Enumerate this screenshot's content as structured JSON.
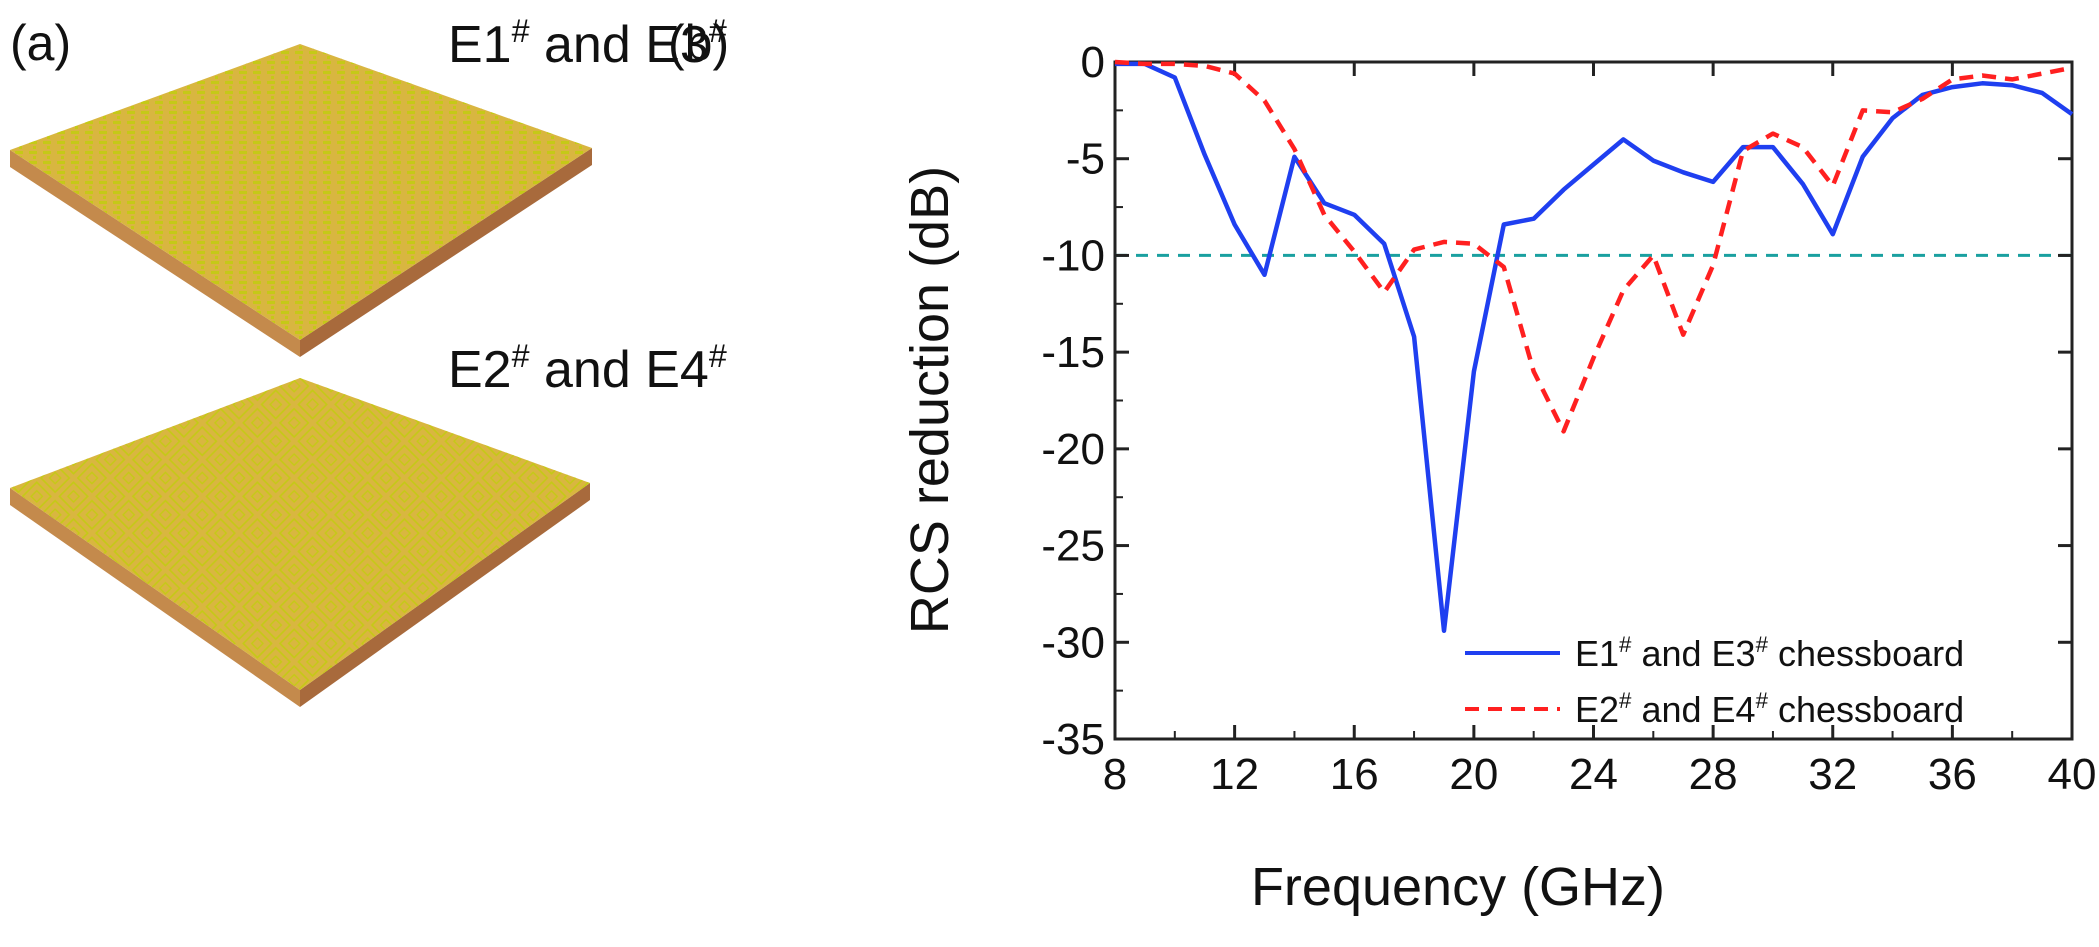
{
  "panel_a": {
    "label": "(a)",
    "top_title": {
      "main1": "E1",
      "sup1": "#",
      "mid": " and E3",
      "sup2": "#"
    },
    "bottom_title": {
      "main1": "E2",
      "sup1": "#",
      "mid": " and E4",
      "sup2": "#"
    },
    "colors": {
      "top": "#d9b640",
      "left": "#c48a4c",
      "right": "#a86a3c",
      "pattern": "#c2cc10"
    }
  },
  "panel_b": {
    "label": "(b)"
  },
  "chart_data": {
    "type": "line",
    "xlabel": "Frequency (GHz)",
    "ylabel": "RCS reduction (dB)",
    "xlim": [
      8,
      40
    ],
    "ylim": [
      -35,
      0
    ],
    "xticks": [
      8,
      12,
      16,
      20,
      24,
      28,
      32,
      36,
      40
    ],
    "yticks": [
      0,
      -5,
      -10,
      -15,
      -20,
      -25,
      -30,
      -35
    ],
    "reference_line": {
      "y": -10,
      "style": "dashed",
      "color": "#1aa0a0"
    },
    "legend_position": "bottom-right",
    "series": [
      {
        "name": "E1# and E3# chessboard",
        "legend": {
          "main1": "E1",
          "sup1": "#",
          "mid": " and E3",
          "sup2": "#",
          "tail": " chessboard"
        },
        "color": "#1f3ff0",
        "style": "solid",
        "x": [
          8,
          9,
          10,
          11,
          12,
          13,
          14,
          15,
          16,
          17,
          18,
          19,
          20,
          21,
          22,
          23,
          24,
          25,
          26,
          27,
          28,
          29,
          30,
          31,
          32,
          33,
          34,
          35,
          36,
          37,
          38,
          39,
          40
        ],
        "y": [
          -0.1,
          -0.1,
          -0.8,
          -4.8,
          -8.4,
          -11.0,
          -4.9,
          -7.3,
          -7.9,
          -9.4,
          -14.2,
          -29.4,
          -16.0,
          -8.4,
          -8.1,
          -6.6,
          -5.3,
          -4.0,
          -5.1,
          -5.7,
          -6.2,
          -4.4,
          -4.4,
          -6.3,
          -8.9,
          -4.9,
          -2.9,
          -1.7,
          -1.3,
          -1.1,
          -1.2,
          -1.6,
          -2.7
        ]
      },
      {
        "name": "E2# and E4# chessboard",
        "legend": {
          "main1": "E2",
          "sup1": "#",
          "mid": " and E4",
          "sup2": "#",
          "tail": " chessboard"
        },
        "color": "#ff2020",
        "style": "dashed",
        "x": [
          8,
          9,
          10,
          11,
          12,
          13,
          14,
          15,
          16,
          17,
          18,
          19,
          20,
          21,
          22,
          23,
          24,
          25,
          26,
          27,
          28,
          29,
          30,
          31,
          32,
          33,
          34,
          35,
          36,
          37,
          38,
          39,
          40
        ],
        "y": [
          0,
          -0.1,
          -0.1,
          -0.2,
          -0.6,
          -2.0,
          -4.5,
          -7.9,
          -9.8,
          -11.9,
          -9.7,
          -9.3,
          -9.4,
          -10.6,
          -16.0,
          -19.1,
          -15.3,
          -11.8,
          -10.0,
          -14.1,
          -10.5,
          -4.6,
          -3.7,
          -4.4,
          -6.4,
          -2.5,
          -2.6,
          -1.9,
          -0.9,
          -0.7,
          -0.9,
          -0.6,
          -0.3
        ]
      }
    ]
  }
}
